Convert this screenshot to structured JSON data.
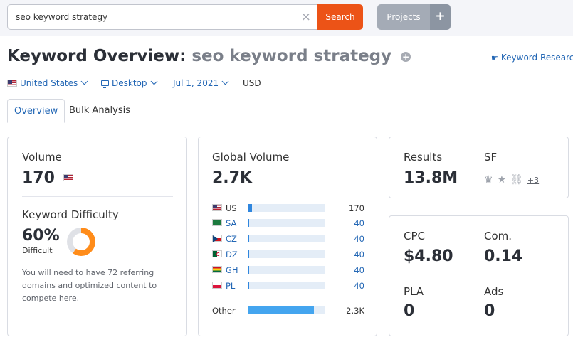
{
  "search": {
    "value": "seo keyword strategy",
    "clear_icon": "×",
    "button_label": "Search"
  },
  "projects": {
    "label": "Projects",
    "plus": "+"
  },
  "title": {
    "prefix": "Keyword Overview:",
    "query": "seo keyword strategy",
    "add_icon": "+"
  },
  "keyword_research_link": {
    "icon": "☛",
    "label": "Keyword Research"
  },
  "filters": {
    "country": "United States",
    "device": "Desktop",
    "date": "Jul 1, 2021",
    "currency": "USD"
  },
  "tabs": [
    {
      "label": "Overview"
    },
    {
      "label": "Bulk Analysis"
    }
  ],
  "volume": {
    "label": "Volume",
    "value": "170"
  },
  "keyword_difficulty": {
    "label": "Keyword Difficulty",
    "value": "60%",
    "level": "Difficult",
    "percent": 60,
    "note": "You will need to have 72 referring domains and optimized content to compete here.",
    "colors": {
      "fill": "#ff8c1a",
      "track": "#dfe1e6"
    }
  },
  "global_volume": {
    "label": "Global Volume",
    "value": "2.7K",
    "rows": [
      {
        "code": "US",
        "value": "170",
        "fill_pct": 6,
        "link": false
      },
      {
        "code": "SA",
        "value": "40",
        "fill_pct": 1.5,
        "link": true
      },
      {
        "code": "CZ",
        "value": "40",
        "fill_pct": 1.5,
        "link": true
      },
      {
        "code": "DZ",
        "value": "40",
        "fill_pct": 1.5,
        "link": true
      },
      {
        "code": "GH",
        "value": "40",
        "fill_pct": 1.5,
        "link": true
      },
      {
        "code": "PL",
        "value": "40",
        "fill_pct": 1.5,
        "link": true
      }
    ],
    "other": {
      "label": "Other",
      "value": "2.3K",
      "fill_pct": 86
    }
  },
  "results": {
    "label": "Results",
    "value": "13.8M"
  },
  "sf": {
    "label": "SF",
    "icons": [
      "crown-icon",
      "star-icon",
      "link-icon"
    ],
    "more": "+3"
  },
  "cpc": {
    "label": "CPC",
    "value": "$4.80"
  },
  "com": {
    "label": "Com.",
    "value": "0.14"
  },
  "pla": {
    "label": "PLA",
    "value": "0"
  },
  "ads": {
    "label": "Ads",
    "value": "0"
  }
}
